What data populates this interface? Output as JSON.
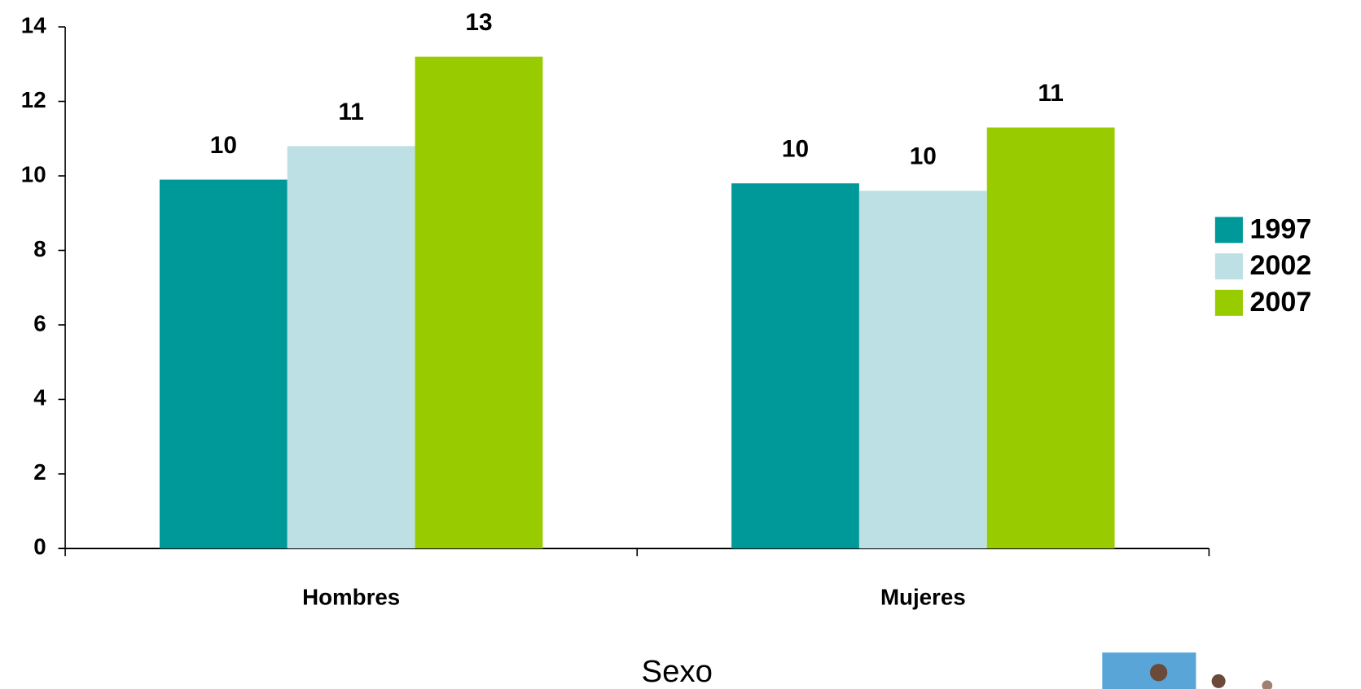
{
  "chart_data": {
    "type": "bar",
    "x_label": "Sexo",
    "categories": [
      "Hombres",
      "Mujeres"
    ],
    "series": [
      {
        "name": "1997",
        "color": "#009999",
        "values": [
          9.9,
          9.8
        ],
        "value_labels": [
          "10",
          "10"
        ]
      },
      {
        "name": "2002",
        "color": "#bce0e3",
        "values": [
          10.8,
          9.6
        ],
        "value_labels": [
          "11",
          "10"
        ]
      },
      {
        "name": "2007",
        "color": "#99cc00",
        "values": [
          13.2,
          11.3
        ],
        "value_labels": [
          "13",
          "11"
        ]
      }
    ],
    "ylim": [
      0,
      14
    ],
    "yticks": [
      0,
      2,
      4,
      6,
      8,
      10,
      12,
      14
    ],
    "grid": false,
    "legend": "right"
  }
}
